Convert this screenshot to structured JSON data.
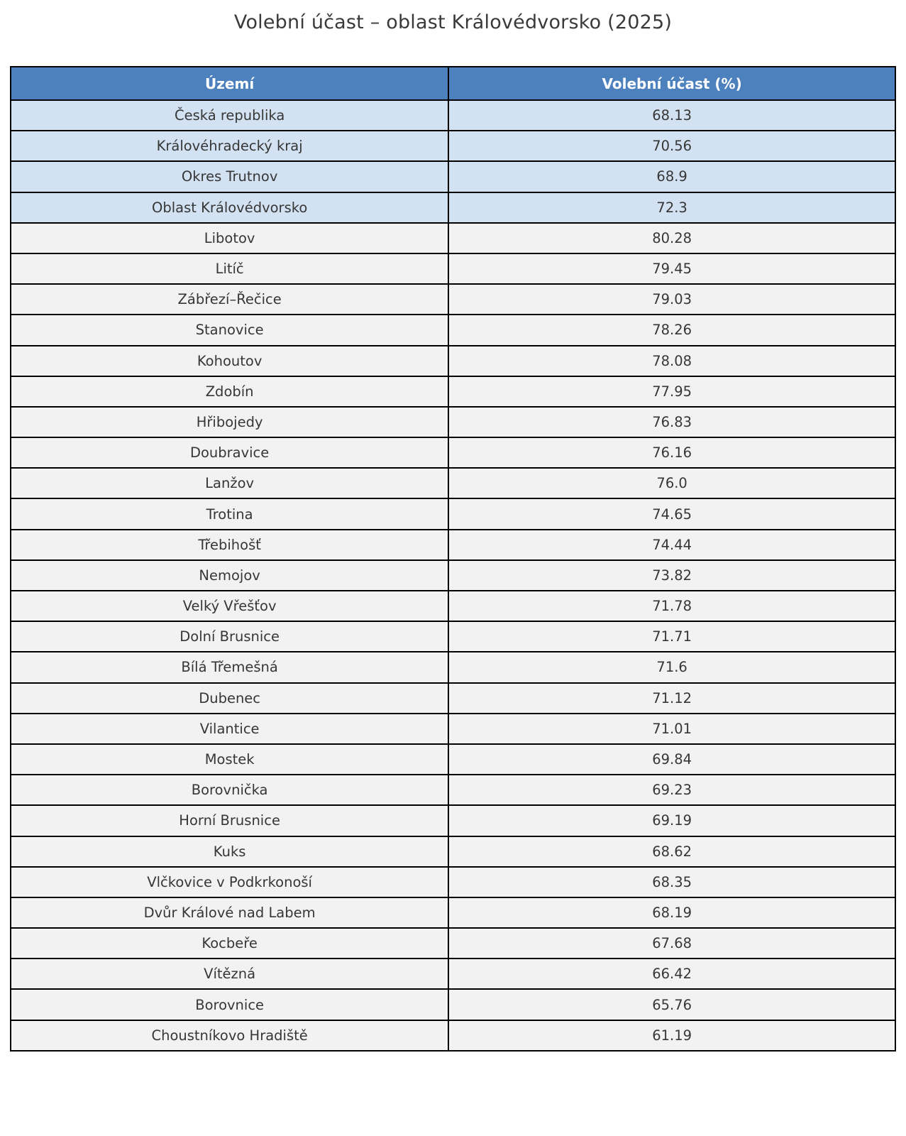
{
  "chart_data": {
    "type": "table",
    "title": "Volební účast – oblast Královédvorsko (2025)",
    "columns": [
      "Území",
      "Volební účast (%)"
    ],
    "highlight_row_count": 4,
    "rows": [
      [
        "Česká republika",
        "68.13"
      ],
      [
        "Královéhradecký kraj",
        "70.56"
      ],
      [
        "Okres Trutnov",
        "68.9"
      ],
      [
        "Oblast Královédvorsko",
        "72.3"
      ],
      [
        "Libotov",
        "80.28"
      ],
      [
        "Litíč",
        "79.45"
      ],
      [
        "Zábřezí–Řečice",
        "79.03"
      ],
      [
        "Stanovice",
        "78.26"
      ],
      [
        "Kohoutov",
        "78.08"
      ],
      [
        "Zdobín",
        "77.95"
      ],
      [
        "Hřibojedy",
        "76.83"
      ],
      [
        "Doubravice",
        "76.16"
      ],
      [
        "Lanžov",
        "76.0"
      ],
      [
        "Trotina",
        "74.65"
      ],
      [
        "Třebihošť",
        "74.44"
      ],
      [
        "Nemojov",
        "73.82"
      ],
      [
        "Velký Vřešťov",
        "71.78"
      ],
      [
        "Dolní Brusnice",
        "71.71"
      ],
      [
        "Bílá Třemešná",
        "71.6"
      ],
      [
        "Dubenec",
        "71.12"
      ],
      [
        "Vilantice",
        "71.01"
      ],
      [
        "Mostek",
        "69.84"
      ],
      [
        "Borovnička",
        "69.23"
      ],
      [
        "Horní Brusnice",
        "69.19"
      ],
      [
        "Kuks",
        "68.62"
      ],
      [
        "Vlčkovice v Podkrkonoší",
        "68.35"
      ],
      [
        "Dvůr Králové nad Labem",
        "68.19"
      ],
      [
        "Kocbeře",
        "67.68"
      ],
      [
        "Vítězná",
        "66.42"
      ],
      [
        "Borovnice",
        "65.76"
      ],
      [
        "Choustníkovo Hradiště",
        "61.19"
      ]
    ]
  },
  "colors": {
    "header_bg": "#4d81be",
    "header_text": "#ffffff",
    "highlight_bg": "#d3e2f2",
    "row_bg": "#f2f2f2",
    "border": "#000000",
    "cell_text": "#363636",
    "title_text": "#3a3a3a"
  }
}
